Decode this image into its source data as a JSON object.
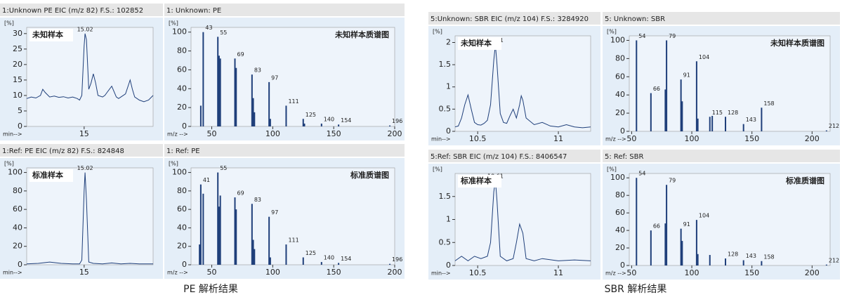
{
  "chart_data": [
    {
      "type": "line",
      "title": "1:Unknown PE EIC (m/z 82) F.S.: 102852",
      "annotation": "未知样本",
      "y_label": "[%]",
      "x_label": "min-->",
      "color": "#1f3f7a",
      "x": [
        13.75,
        13.85,
        13.95,
        14.05,
        14.1,
        14.15,
        14.25,
        14.35,
        14.45,
        14.55,
        14.65,
        14.75,
        14.85,
        14.9,
        14.95,
        15.0,
        15.02,
        15.05,
        15.1,
        15.15,
        15.2,
        15.25,
        15.3,
        15.4,
        15.45,
        15.5,
        15.6,
        15.7,
        15.75,
        15.8,
        15.9,
        16.0,
        16.05,
        16.1,
        16.2,
        16.3,
        16.4,
        16.5
      ],
      "values": [
        9,
        9.5,
        9.2,
        10,
        12,
        11,
        9.5,
        9.8,
        9.4,
        9.6,
        9.2,
        9.5,
        9,
        8.5,
        10,
        26,
        30,
        28,
        12,
        14,
        17,
        14,
        10,
        9.5,
        10,
        11,
        13,
        9.5,
        9,
        9.5,
        10.5,
        15,
        12,
        9.5,
        8.5,
        8,
        8.5,
        10
      ],
      "xlim": [
        13.75,
        16.5
      ],
      "ylim": [
        0,
        32
      ],
      "xticks": [
        15
      ],
      "yticks": [
        0,
        5,
        10,
        15,
        20,
        25,
        30
      ],
      "peak_labels": [
        15.02
      ]
    },
    {
      "type": "bar",
      "title": "1: Unknown: PE",
      "annotation": "未知样本质谱图",
      "y_label": "[%]",
      "x_label": "m/z -->",
      "color": "#1f3f7a",
      "x": [
        41,
        43,
        55,
        56,
        57,
        69,
        70,
        83,
        84,
        85,
        97,
        98,
        111,
        125,
        126,
        140,
        154,
        196
      ],
      "values": [
        22,
        100,
        95,
        75,
        72,
        72,
        62,
        55,
        30,
        15,
        47,
        8,
        22,
        8,
        3,
        3,
        2,
        1
      ],
      "xlim": [
        33,
        200
      ],
      "ylim": [
        0,
        105
      ],
      "xticks": [
        50,
        100,
        150,
        200
      ],
      "yticks": [
        0,
        20,
        40,
        60,
        80,
        100
      ],
      "peak_labels": [
        43,
        55,
        69,
        83,
        97,
        111,
        125,
        140,
        154,
        196
      ]
    },
    {
      "type": "line",
      "title": "1:Ref: PE EIC (m/z 82) F.S.: 824848",
      "annotation": "标准样本",
      "y_label": "[%]",
      "x_label": "min-->",
      "color": "#1f3f7a",
      "x": [
        13.75,
        14.0,
        14.25,
        14.5,
        14.75,
        14.9,
        14.95,
        15.0,
        15.02,
        15.05,
        15.1,
        15.2,
        15.4,
        15.6,
        15.8,
        16.0,
        16.2,
        16.5
      ],
      "values": [
        1,
        1.5,
        3,
        1.5,
        1,
        1,
        5,
        80,
        100,
        70,
        3,
        1.5,
        1,
        2,
        1,
        1.5,
        1,
        1
      ],
      "xlim": [
        13.75,
        16.5
      ],
      "ylim": [
        0,
        105
      ],
      "xticks": [
        15
      ],
      "yticks": [
        0,
        20,
        40,
        60,
        80,
        100
      ],
      "peak_labels": [
        15.02
      ]
    },
    {
      "type": "bar",
      "title": "1: Ref: PE",
      "annotation": "标准质谱图",
      "y_label": "[%]",
      "x_label": "m/z -->",
      "color": "#1f3f7a",
      "x": [
        40,
        41,
        43,
        55,
        56,
        57,
        69,
        70,
        83,
        84,
        85,
        97,
        98,
        111,
        125,
        140,
        154,
        196
      ],
      "values": [
        22,
        87,
        77,
        100,
        63,
        75,
        73,
        60,
        66,
        27,
        17,
        52,
        8,
        22,
        8,
        3,
        2,
        1
      ],
      "xlim": [
        33,
        200
      ],
      "ylim": [
        0,
        105
      ],
      "xticks": [
        50,
        100,
        150,
        200
      ],
      "yticks": [
        0,
        20,
        40,
        60,
        80,
        100
      ],
      "peak_labels": [
        41,
        55,
        69,
        83,
        97,
        111,
        125,
        140,
        154,
        196
      ]
    },
    {
      "type": "line",
      "title": "5:Unknown: SBR EIC (m/z 104) F.S.: 3284920",
      "annotation": "未知样本",
      "y_label": "[%]",
      "x_label": "min-->",
      "color": "#1f3f7a",
      "x": [
        10.36,
        10.38,
        10.4,
        10.42,
        10.44,
        10.46,
        10.48,
        10.5,
        10.52,
        10.54,
        10.56,
        10.58,
        10.6,
        10.61,
        10.62,
        10.64,
        10.66,
        10.68,
        10.7,
        10.72,
        10.74,
        10.76,
        10.77,
        10.78,
        10.8,
        10.85,
        10.9,
        10.95,
        11.0,
        11.05,
        11.1,
        11.15,
        11.2
      ],
      "values": [
        0.1,
        0.12,
        0.3,
        0.6,
        0.82,
        0.5,
        0.2,
        0.15,
        0.14,
        0.18,
        0.25,
        0.6,
        1.6,
        1.95,
        1.5,
        0.4,
        0.2,
        0.18,
        0.35,
        0.5,
        0.3,
        0.6,
        0.8,
        0.7,
        0.3,
        0.15,
        0.2,
        0.12,
        0.1,
        0.15,
        0.1,
        0.08,
        0.1
      ],
      "xlim": [
        10.36,
        11.2
      ],
      "ylim": [
        0,
        2.15
      ],
      "xticks": [
        10.5,
        11
      ],
      "yticks": [
        0,
        0.5,
        1,
        1.5,
        2
      ],
      "peak_labels": [
        10.61
      ]
    },
    {
      "type": "bar",
      "title": "5: Unknown: SBR",
      "annotation": "未知样本质谱图",
      "y_label": "[%]",
      "x_label": "m/z -->",
      "color": "#1f3f7a",
      "x": [
        54,
        66,
        78,
        79,
        91,
        92,
        104,
        105,
        115,
        117,
        128,
        143,
        158,
        212
      ],
      "values": [
        100,
        42,
        46,
        100,
        57,
        33,
        77,
        14,
        16,
        17,
        16,
        8,
        26,
        1
      ],
      "xlim": [
        48,
        215
      ],
      "ylim": [
        0,
        105
      ],
      "xticks": [
        50,
        100,
        150,
        200
      ],
      "yticks": [
        0,
        20,
        40,
        60,
        80,
        100
      ],
      "peak_labels": [
        54,
        66,
        79,
        91,
        104,
        115,
        128,
        143,
        158,
        212
      ]
    },
    {
      "type": "line",
      "title": "5:Ref: SBR EIC (m/z 104) F.S.: 8406547",
      "annotation": "标准样本",
      "y_label": "[%]",
      "x_label": "min-->",
      "color": "#1f3f7a",
      "x": [
        10.36,
        10.4,
        10.44,
        10.48,
        10.52,
        10.56,
        10.58,
        10.6,
        10.61,
        10.62,
        10.64,
        10.68,
        10.72,
        10.74,
        10.76,
        10.78,
        10.8,
        10.85,
        10.9,
        11.0,
        11.1,
        11.2
      ],
      "values": [
        0.1,
        0.2,
        0.1,
        0.2,
        0.15,
        0.2,
        0.5,
        1.6,
        1.85,
        1.4,
        0.2,
        0.1,
        0.15,
        0.5,
        0.9,
        0.7,
        0.15,
        0.1,
        0.15,
        0.1,
        0.12,
        0.1
      ],
      "xlim": [
        10.36,
        11.2
      ],
      "ylim": [
        0,
        2
      ],
      "xticks": [
        10.5,
        11
      ],
      "yticks": [
        0,
        0.5,
        1,
        1.5
      ],
      "peak_labels": [
        10.61
      ]
    },
    {
      "type": "bar",
      "title": "5: Ref: SBR",
      "annotation": "标准质谱图",
      "y_label": "[%]",
      "x_label": "m/z -->",
      "color": "#1f3f7a",
      "x": [
        54,
        66,
        78,
        79,
        91,
        92,
        104,
        105,
        115,
        128,
        143,
        158,
        212
      ],
      "values": [
        100,
        40,
        48,
        92,
        42,
        28,
        52,
        13,
        12,
        8,
        6,
        5,
        1
      ],
      "xlim": [
        48,
        215
      ],
      "ylim": [
        0,
        105
      ],
      "xticks": [
        50,
        100,
        150,
        200
      ],
      "yticks": [
        0,
        20,
        40,
        60,
        80,
        100
      ],
      "peak_labels": [
        54,
        66,
        79,
        91,
        104,
        128,
        143,
        158,
        212
      ]
    }
  ],
  "captions": [
    "PE 解析结果",
    "SBR 解析结果"
  ]
}
